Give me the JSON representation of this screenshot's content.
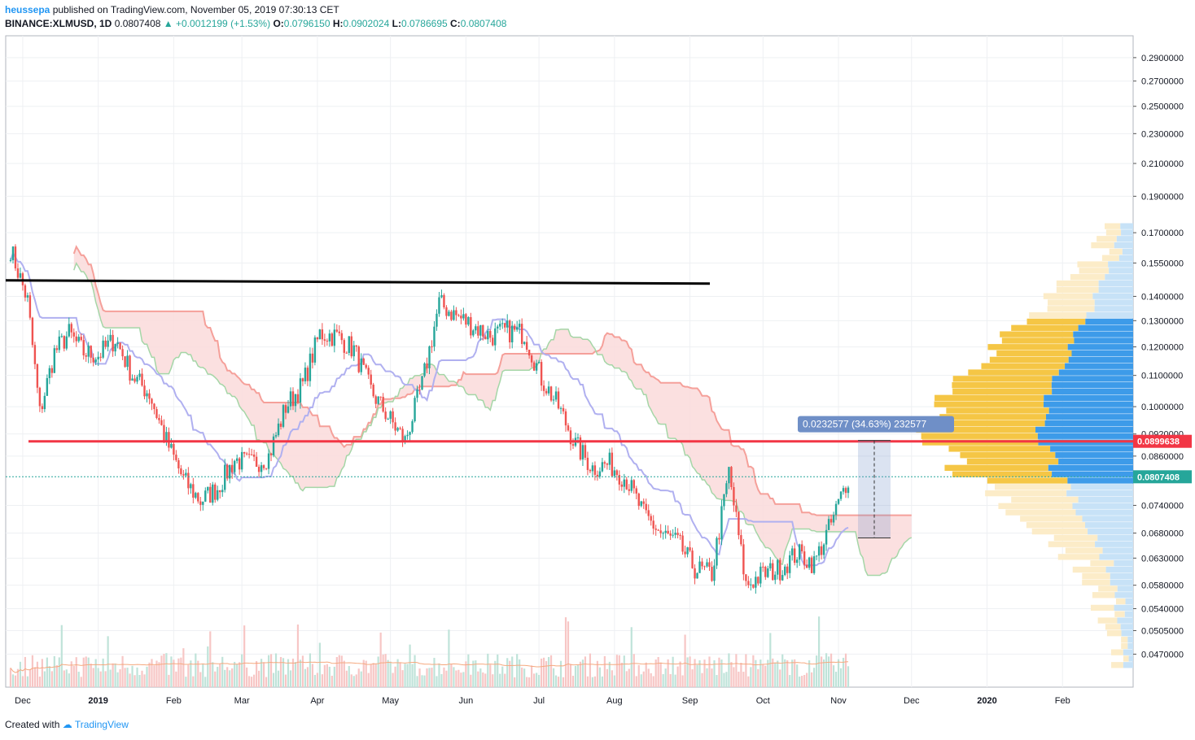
{
  "header": {
    "author": "heussepa",
    "published_text": "published on TradingView.com, November 05, 2019 07:30:13 CET",
    "symbol": "BINANCE:XLMUSD, 1D",
    "last": "0.0807408",
    "arrow": "▲",
    "change": "+0.0012199 (+1.53%)",
    "o_label": "O:",
    "o_val": "0.0796150",
    "h_label": "H:",
    "h_val": "0.0902024",
    "l_label": "L:",
    "l_val": "0.0786695",
    "c_label": "C:",
    "c_val": "0.0807408"
  },
  "footer": {
    "created_with": "Created with",
    "brand": "TradingView"
  },
  "colors": {
    "up": "#26a69a",
    "down": "#ef5350",
    "cloud_bear": "#fadada",
    "cloud_bull": "#d4ecd4",
    "senkou_a": "#a5d6a7",
    "senkou_b": "#f5a09a",
    "kijun": "#b0b0f0",
    "resistance": "#000000",
    "support": "#f23645",
    "vp_blue": "#3d9be9",
    "vp_yellow": "#f5c645",
    "ma": "#f5a97f",
    "measure": "#6f8fc7"
  },
  "chart_data": {
    "type": "candlestick",
    "symbol": "BINANCE:XLMUSD",
    "interval": "1D",
    "x_labels": [
      "Dec",
      "2019",
      "Feb",
      "Mar",
      "Apr",
      "May",
      "Jun",
      "Jul",
      "Aug",
      "Sep",
      "Oct",
      "Nov",
      "Dec",
      "2020",
      "Feb"
    ],
    "y_ticks": [
      "0.2900000",
      "0.2700000",
      "0.2500000",
      "0.2300000",
      "0.2100000",
      "0.1900000",
      "0.1700000",
      "0.1550000",
      "0.1400000",
      "0.1300000",
      "0.1200000",
      "0.1100000",
      "0.1000000",
      "0.0920000",
      "0.0860000",
      "0.0740000",
      "0.0680000",
      "0.0630000",
      "0.0580000",
      "0.0540000",
      "0.0505000",
      "0.0470000"
    ],
    "y_scale": "log",
    "ylim": [
      0.0425,
      0.31
    ],
    "current_price": 0.0807408,
    "current_price_label": "0.0807408",
    "support_price": 0.0899638,
    "support_label": "0.0899638",
    "resistance_price": 0.147,
    "measure_label": "0.0232577 (34.63%) 232577",
    "measure_from": 0.067,
    "measure_to": 0.0902,
    "close_series": [
      {
        "d": "2018-11-26",
        "c": 0.162
      },
      {
        "d": "2018-12-03",
        "c": 0.138
      },
      {
        "d": "2018-12-08",
        "c": 0.098
      },
      {
        "d": "2018-12-14",
        "c": 0.118
      },
      {
        "d": "2018-12-20",
        "c": 0.125
      },
      {
        "d": "2018-12-26",
        "c": 0.118
      },
      {
        "d": "2019-01-01",
        "c": 0.117
      },
      {
        "d": "2019-01-08",
        "c": 0.123
      },
      {
        "d": "2019-01-15",
        "c": 0.11
      },
      {
        "d": "2019-01-22",
        "c": 0.104
      },
      {
        "d": "2019-01-29",
        "c": 0.09
      },
      {
        "d": "2019-02-05",
        "c": 0.08
      },
      {
        "d": "2019-02-12",
        "c": 0.075
      },
      {
        "d": "2019-02-19",
        "c": 0.078
      },
      {
        "d": "2019-02-26",
        "c": 0.085
      },
      {
        "d": "2019-03-05",
        "c": 0.084
      },
      {
        "d": "2019-03-12",
        "c": 0.086
      },
      {
        "d": "2019-03-19",
        "c": 0.1
      },
      {
        "d": "2019-03-26",
        "c": 0.107
      },
      {
        "d": "2019-04-02",
        "c": 0.125
      },
      {
        "d": "2019-04-09",
        "c": 0.124
      },
      {
        "d": "2019-04-16",
        "c": 0.119
      },
      {
        "d": "2019-04-23",
        "c": 0.105
      },
      {
        "d": "2019-04-30",
        "c": 0.097
      },
      {
        "d": "2019-05-07",
        "c": 0.09
      },
      {
        "d": "2019-05-14",
        "c": 0.107
      },
      {
        "d": "2019-05-21",
        "c": 0.137
      },
      {
        "d": "2019-05-28",
        "c": 0.132
      },
      {
        "d": "2019-06-04",
        "c": 0.128
      },
      {
        "d": "2019-06-11",
        "c": 0.124
      },
      {
        "d": "2019-06-18",
        "c": 0.126
      },
      {
        "d": "2019-06-25",
        "c": 0.125
      },
      {
        "d": "2019-07-02",
        "c": 0.109
      },
      {
        "d": "2019-07-09",
        "c": 0.1
      },
      {
        "d": "2019-07-16",
        "c": 0.089
      },
      {
        "d": "2019-07-23",
        "c": 0.083
      },
      {
        "d": "2019-07-30",
        "c": 0.084
      },
      {
        "d": "2019-08-06",
        "c": 0.08
      },
      {
        "d": "2019-08-13",
        "c": 0.072
      },
      {
        "d": "2019-08-20",
        "c": 0.068
      },
      {
        "d": "2019-08-27",
        "c": 0.066
      },
      {
        "d": "2019-09-03",
        "c": 0.061
      },
      {
        "d": "2019-09-10",
        "c": 0.06
      },
      {
        "d": "2019-09-17",
        "c": 0.082
      },
      {
        "d": "2019-09-24",
        "c": 0.058
      },
      {
        "d": "2019-10-01",
        "c": 0.06
      },
      {
        "d": "2019-10-08",
        "c": 0.061
      },
      {
        "d": "2019-10-15",
        "c": 0.064
      },
      {
        "d": "2019-10-22",
        "c": 0.062
      },
      {
        "d": "2019-10-29",
        "c": 0.07
      },
      {
        "d": "2019-11-05",
        "c": 0.0807
      }
    ]
  }
}
